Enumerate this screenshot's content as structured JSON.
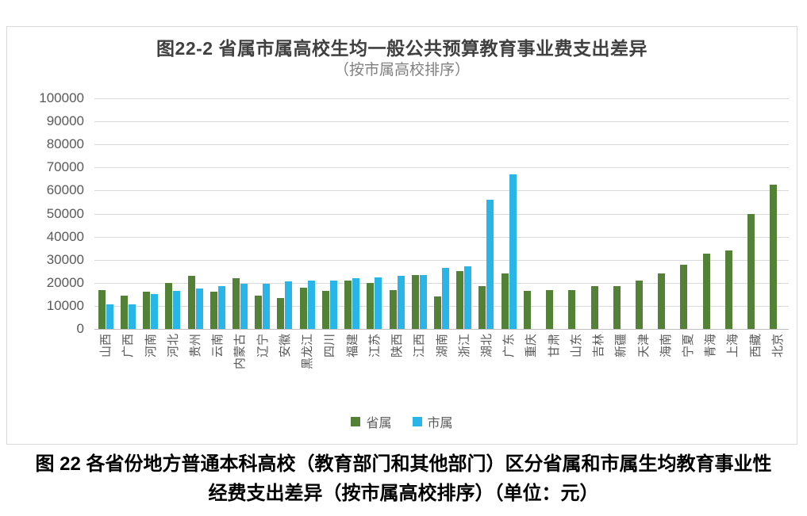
{
  "figure": {
    "title": "图22-2 省属市属高校生均一般公共预算教育事业费支出差异",
    "subtitle": "（按市属高校排序）"
  },
  "caption": {
    "line1": "图 22 各省份地方普通本科高校（教育部门和其他部门）区分省属和市属生均教育事业性",
    "line2": "经费支出差异（按市属高校排序）（单位：元）"
  },
  "chart_data": {
    "type": "bar",
    "title": "图22-2 省属市属高校生均一般公共预算教育事业费支出差异",
    "subtitle": "（按市属高校排序）",
    "unit": "元",
    "categories": [
      "山西",
      "广西",
      "河南",
      "河北",
      "贵州",
      "云南",
      "内蒙古",
      "辽宁",
      "安徽",
      "黑龙江",
      "四川",
      "福建",
      "江苏",
      "陕西",
      "江西",
      "湖南",
      "浙江",
      "湖北",
      "广东",
      "重庆",
      "甘肃",
      "山东",
      "吉林",
      "新疆",
      "天津",
      "海南",
      "宁夏",
      "青海",
      "上海",
      "西藏",
      "北京"
    ],
    "series": [
      {
        "name": "省属",
        "color": "#538135",
        "values": [
          17000,
          14500,
          16000,
          20000,
          23000,
          16000,
          22000,
          14500,
          13500,
          18000,
          16500,
          21000,
          20000,
          17000,
          23500,
          14000,
          25000,
          18500,
          24000,
          16500,
          17000,
          17000,
          18500,
          18500,
          21000,
          24000,
          28000,
          32500,
          34000,
          50000,
          62500
        ]
      },
      {
        "name": "市属",
        "color": "#29b5e8",
        "values": [
          10500,
          10500,
          15000,
          16500,
          17500,
          18500,
          19500,
          19500,
          20500,
          21000,
          21000,
          22000,
          22500,
          23000,
          23500,
          26500,
          27000,
          56000,
          67000,
          null,
          null,
          null,
          null,
          null,
          null,
          null,
          null,
          null,
          null,
          null,
          null
        ]
      }
    ],
    "ylim": [
      0,
      100000
    ],
    "ytick_interval": 10000,
    "ytick_labels": [
      "0",
      "10000",
      "20000",
      "30000",
      "40000",
      "50000",
      "60000",
      "70000",
      "80000",
      "90000",
      "100000"
    ],
    "grid": true,
    "legend_position": "bottom",
    "x_label_rotation": -90
  }
}
